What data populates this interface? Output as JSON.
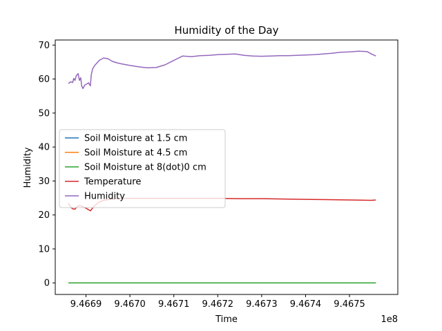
{
  "chart_data": {
    "type": "line",
    "title": "Humidity of the Day",
    "xlabel": "Time",
    "ylabel": "Humidity",
    "x_offset_label": "1e8",
    "x_ticks": [
      {
        "value": 9.4669,
        "label": "9.4669"
      },
      {
        "value": 9.467,
        "label": "9.4670"
      },
      {
        "value": 9.4671,
        "label": "9.4671"
      },
      {
        "value": 9.4672,
        "label": "9.4672"
      },
      {
        "value": 9.4673,
        "label": "9.4673"
      },
      {
        "value": 9.4674,
        "label": "9.4674"
      },
      {
        "value": 9.4675,
        "label": "9.4675"
      }
    ],
    "y_ticks": [
      0,
      10,
      20,
      30,
      40,
      50,
      60,
      70
    ],
    "xlim": [
      9.46683,
      9.46761
    ],
    "ylim": [
      -3.4,
      71.5
    ],
    "grid": false,
    "legend_position": "center-left",
    "series": [
      {
        "name": "Soil Moisture at 1.5 cm",
        "color": "#1f77b4",
        "x": [
          9.46686,
          9.46756
        ],
        "y": [
          0,
          0
        ]
      },
      {
        "name": "Soil Moisture at 4.5 cm",
        "color": "#ff7f0e",
        "x": [
          9.46686,
          9.46756
        ],
        "y": [
          0,
          0
        ]
      },
      {
        "name": "Soil Moisture at 8(dot)0 cm",
        "color": "#2ca02c",
        "x": [
          9.46686,
          9.46756
        ],
        "y": [
          0,
          0
        ]
      },
      {
        "name": "Temperature",
        "color": "#d62728",
        "x": [
          9.46686,
          9.466865,
          9.46687,
          9.466875,
          9.46688,
          9.466885,
          9.46689,
          9.466895,
          9.4669,
          9.466905,
          9.46691,
          9.46692,
          9.46693,
          9.46694,
          9.46696,
          9.46698,
          9.467,
          9.46705,
          9.4671,
          9.46715,
          9.4672,
          9.46725,
          9.4673,
          9.46735,
          9.4674,
          9.46745,
          9.4675,
          9.46755,
          9.46756
        ],
        "y": [
          23.5,
          22.3,
          21.8,
          21.7,
          22.5,
          22.8,
          22.6,
          22.3,
          22.0,
          21.6,
          21.2,
          22.8,
          23.8,
          24.3,
          24.7,
          24.9,
          24.9,
          24.9,
          24.9,
          24.9,
          24.9,
          24.8,
          24.8,
          24.7,
          24.6,
          24.5,
          24.4,
          24.3,
          24.4
        ]
      },
      {
        "name": "Humidity",
        "color": "#9467bd",
        "x": [
          9.46686,
          9.466865,
          9.46687,
          9.466872,
          9.466875,
          9.466878,
          9.466882,
          9.466885,
          9.466888,
          9.46689,
          9.466893,
          9.466897,
          9.466902,
          9.466906,
          9.46691,
          9.466912,
          9.466915,
          9.46692,
          9.46693,
          9.46694,
          9.46695,
          9.46696,
          9.46697,
          9.46698,
          9.467,
          9.46702,
          9.46704,
          9.46706,
          9.46708,
          9.4671,
          9.46712,
          9.46714,
          9.46716,
          9.46718,
          9.4672,
          9.46722,
          9.46724,
          9.46726,
          9.46728,
          9.4673,
          9.46732,
          9.46734,
          9.46736,
          9.46738,
          9.4674,
          9.46742,
          9.46744,
          9.46746,
          9.46748,
          9.4675,
          9.46752,
          9.46754,
          9.46755,
          9.46756
        ],
        "y": [
          58.7,
          59.2,
          59.0,
          60.2,
          59.6,
          61.0,
          61.6,
          59.6,
          60.4,
          58.0,
          57.2,
          58.2,
          58.6,
          58.9,
          58.0,
          61.2,
          63.0,
          64.0,
          65.5,
          66.2,
          66.0,
          65.2,
          64.8,
          64.5,
          64.0,
          63.6,
          63.3,
          63.4,
          64.2,
          65.5,
          66.8,
          66.6,
          66.9,
          67.0,
          67.2,
          67.3,
          67.4,
          67.0,
          66.8,
          66.7,
          66.8,
          66.9,
          66.9,
          67.0,
          67.1,
          67.2,
          67.4,
          67.6,
          67.9,
          68.0,
          68.2,
          68.1,
          67.4,
          66.8
        ]
      }
    ]
  }
}
